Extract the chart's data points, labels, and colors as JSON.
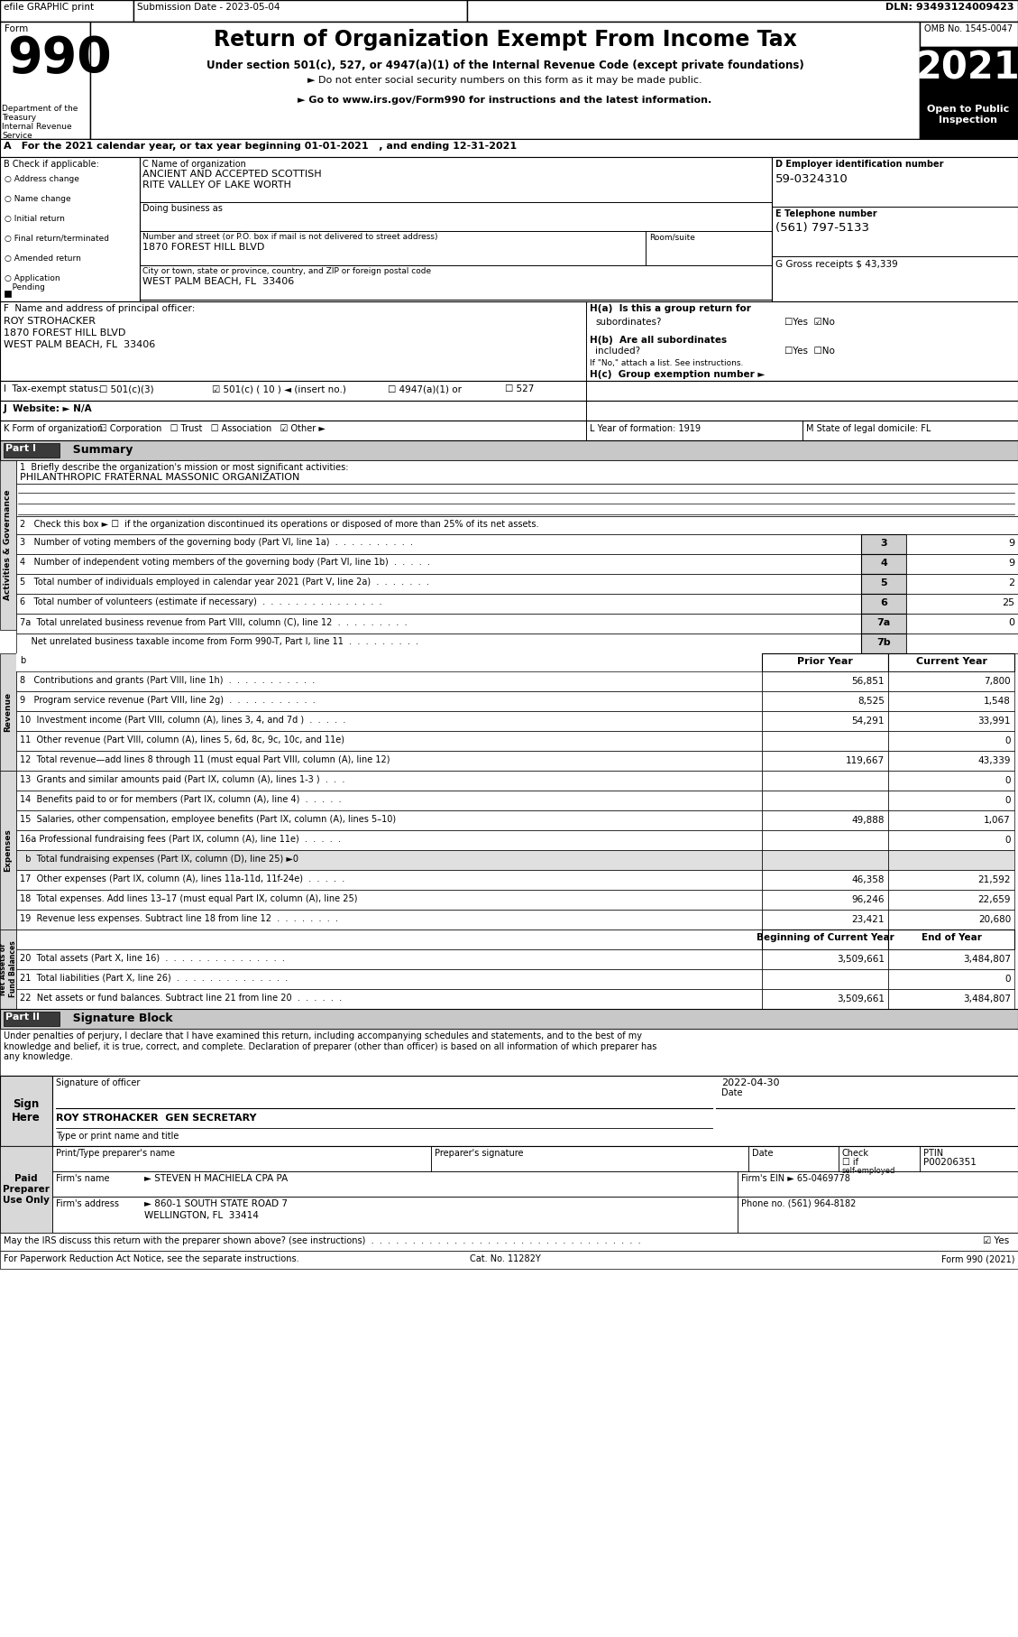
{
  "form_number": "990",
  "title": "Return of Organization Exempt From Income Tax",
  "subtitle1": "Under section 501(c), 527, or 4947(a)(1) of the Internal Revenue Code (except private foundations)",
  "subtitle2": "► Do not enter social security numbers on this form as it may be made public.",
  "subtitle3": "► Go to www.irs.gov/Form990 for instructions and the latest information.",
  "year": "2021",
  "omb": "OMB No. 1545-0047",
  "open_to_public": "Open to Public\nInspection",
  "dept1": "Department of the",
  "dept2": "Treasury",
  "dept3": "Internal Revenue",
  "dept4": "Service",
  "section_a": "A For the 2021 calendar year, or tax year beginning 01-01-2021   , and ending 12-31-2021",
  "check_b": "B Check if applicable:",
  "org_name_label": "C Name of organization",
  "org_name1": "ANCIENT AND ACCEPTED SCOTTISH",
  "org_name2": "RITE VALLEY OF LAKE WORTH",
  "doing_business": "Doing business as",
  "address_label": "Number and street (or P.O. box if mail is not delivered to street address)",
  "address": "1870 FOREST HILL BLVD",
  "room_label": "Room/suite",
  "city_label": "City or town, state or province, country, and ZIP or foreign postal code",
  "city": "WEST PALM BEACH, FL  33406",
  "ein_label": "D Employer identification number",
  "ein": "59-0324310",
  "phone_label": "E Telephone number",
  "phone": "(561) 797-5133",
  "gross_label": "G Gross receipts $ 43,339",
  "principal_label": "F  Name and address of principal officer:",
  "principal_name": "ROY STROHACKER",
  "principal_addr1": "1870 FOREST HILL BLVD",
  "principal_addr2": "WEST PALM BEACH, FL  33406",
  "ha_label": "H(a)  Is this a group return for",
  "ha_sub": "subordinates?",
  "ha_ans": "☐Yes  ☑No",
  "hb_label": "H(b)  Are all subordinates",
  "hb_sub": "included?",
  "hb_ans": "☐Yes  ☐No",
  "hb_note": "If \"No,\" attach a list. See instructions.",
  "hc_label": "H(c)  Group exemption number ►",
  "tax_label": "I  Tax-exempt status:",
  "tax_501c3": "☐ 501(c)(3)",
  "tax_501c10": "☑ 501(c) ( 10 ) ◄ (insert no.)",
  "tax_4947": "☐ 4947(a)(1) or",
  "tax_527": "☐ 527",
  "website_label": "J  Website: ► N/A",
  "form_org_label": "K Form of organization:",
  "form_org": "☐ Corporation   ☐ Trust   ☐ Association   ☑ Other ►",
  "year_form": "L Year of formation: 1919",
  "state_legal": "M State of legal domicile: FL",
  "part1_label": "Part I",
  "part1_title": "Summary",
  "line1_label": "1  Briefly describe the organization's mission or most significant activities:",
  "line1_val": "PHILANTHROPIC FRATERNAL MASSONIC ORGANIZATION",
  "line2": "2   Check this box ► ☐  if the organization discontinued its operations or disposed of more than 25% of its net assets.",
  "line3": "3   Number of voting members of the governing body (Part VI, line 1a)  .  .  .  .  .  .  .  .  .  .",
  "line3_num": "3",
  "line3_val": "9",
  "line4": "4   Number of independent voting members of the governing body (Part VI, line 1b)  .  .  .  .  .",
  "line4_num": "4",
  "line4_val": "9",
  "line5": "5   Total number of individuals employed in calendar year 2021 (Part V, line 2a)  .  .  .  .  .  .  .",
  "line5_num": "5",
  "line5_val": "2",
  "line6": "6   Total number of volunteers (estimate if necessary)  .  .  .  .  .  .  .  .  .  .  .  .  .  .  .",
  "line6_num": "6",
  "line6_val": "25",
  "line7a": "7a  Total unrelated business revenue from Part VIII, column (C), line 12  .  .  .  .  .  .  .  .  .",
  "line7a_num": "7a",
  "line7a_val": "0",
  "line7b": "    Net unrelated business taxable income from Form 990-T, Part I, line 11  .  .  .  .  .  .  .  .  .",
  "line7b_num": "7b",
  "line7b_val": "",
  "rev_header_prior": "Prior Year",
  "rev_header_cur": "Current Year",
  "line8": "8   Contributions and grants (Part VIII, line 1h)  .  .  .  .  .  .  .  .  .  .  .",
  "line8_prior": "56,851",
  "line8_cur": "7,800",
  "line9": "9   Program service revenue (Part VIII, line 2g)  .  .  .  .  .  .  .  .  .  .  .",
  "line9_prior": "8,525",
  "line9_cur": "1,548",
  "line10": "10  Investment income (Part VIII, column (A), lines 3, 4, and 7d )  .  .  .  .  .",
  "line10_prior": "54,291",
  "line10_cur": "33,991",
  "line11": "11  Other revenue (Part VIII, column (A), lines 5, 6d, 8c, 9c, 10c, and 11e)",
  "line11_prior": "",
  "line11_cur": "0",
  "line12": "12  Total revenue—add lines 8 through 11 (must equal Part VIII, column (A), line 12)",
  "line12_prior": "119,667",
  "line12_cur": "43,339",
  "line13": "13  Grants and similar amounts paid (Part IX, column (A), lines 1-3 )  .  .  .",
  "line13_prior": "",
  "line13_cur": "0",
  "line14": "14  Benefits paid to or for members (Part IX, column (A), line 4)  .  .  .  .  .",
  "line14_prior": "",
  "line14_cur": "0",
  "line15": "15  Salaries, other compensation, employee benefits (Part IX, column (A), lines 5–10)",
  "line15_prior": "49,888",
  "line15_cur": "1,067",
  "line16a": "16a Professional fundraising fees (Part IX, column (A), line 11e)  .  .  .  .  .",
  "line16a_prior": "",
  "line16a_cur": "0",
  "line16b": "  b  Total fundraising expenses (Part IX, column (D), line 25) ►0",
  "line17": "17  Other expenses (Part IX, column (A), lines 11a-11d, 11f-24e)  .  .  .  .  .",
  "line17_prior": "46,358",
  "line17_cur": "21,592",
  "line18": "18  Total expenses. Add lines 13–17 (must equal Part IX, column (A), line 25)",
  "line18_prior": "96,246",
  "line18_cur": "22,659",
  "line19": "19  Revenue less expenses. Subtract line 18 from line 12  .  .  .  .  .  .  .  .",
  "line19_prior": "23,421",
  "line19_cur": "20,680",
  "net_header_beg": "Beginning of Current Year",
  "net_header_end": "End of Year",
  "line20": "20  Total assets (Part X, line 16)  .  .  .  .  .  .  .  .  .  .  .  .  .  .  .",
  "line20_beg": "3,509,661",
  "line20_end": "3,484,807",
  "line21": "21  Total liabilities (Part X, line 26)  .  .  .  .  .  .  .  .  .  .  .  .  .  .",
  "line21_beg": "",
  "line21_end": "0",
  "line22": "22  Net assets or fund balances. Subtract line 21 from line 20  .  .  .  .  .  .",
  "line22_beg": "3,509,661",
  "line22_end": "3,484,807",
  "part2_label": "Part II",
  "part2_title": "Signature Block",
  "sig_text": "Under penalties of perjury, I declare that I have examined this return, including accompanying schedules and statements, and to the best of my\nknowledge and belief, it is true, correct, and complete. Declaration of preparer (other than officer) is based on all information of which preparer has\nany knowledge.",
  "sign_here": "Sign\nHere",
  "sig_label": "Signature of officer",
  "sig_name": "ROY STROHACKER  GEN SECRETARY",
  "sig_title_label": "Type or print name and title",
  "paid_label": "Paid\nPreparer\nUse Only",
  "preparer_name_label": "Print/Type preparer's name",
  "preparer_sig_label": "Preparer's signature",
  "preparer_date_label": "Date",
  "check_label": "Check",
  "selfemployed": "self-employed",
  "ptin_label": "PTIN",
  "ptin": "P00206351",
  "firm_name_label": "Firm's name",
  "firm_name": "► STEVEN H MACHIELA CPA PA",
  "firm_ein_label": "Firm's EIN ►",
  "firm_ein": "65-0469778",
  "firm_addr_label": "Firm's address",
  "firm_addr": "► 860-1 SOUTH STATE ROAD 7",
  "firm_city": "WELLINGTON, FL  33414",
  "firm_phone_label": "Phone no.",
  "firm_phone": "(561) 964-8182",
  "discuss_label": "May the IRS discuss this return with the preparer shown above? (see instructions)  .  .  .  .  .  .  .  .  .  .  .  .  .  .  .  .  .  .  .  .  .  .  .  .  .  .  .  .  .  .  .  .  .",
  "discuss_ans": "☑ Yes   ☐ No",
  "cat_label": "For Paperwork Reduction Act Notice, see the separate instructions.",
  "cat_no": "Cat. No. 11282Y",
  "form_footer": "Form 990 (2021)",
  "sidebar_activities": "Activities & Governance",
  "sidebar_revenue": "Revenue",
  "sidebar_expenses": "Expenses",
  "sidebar_net": "Net Assets or\nFund Balances"
}
